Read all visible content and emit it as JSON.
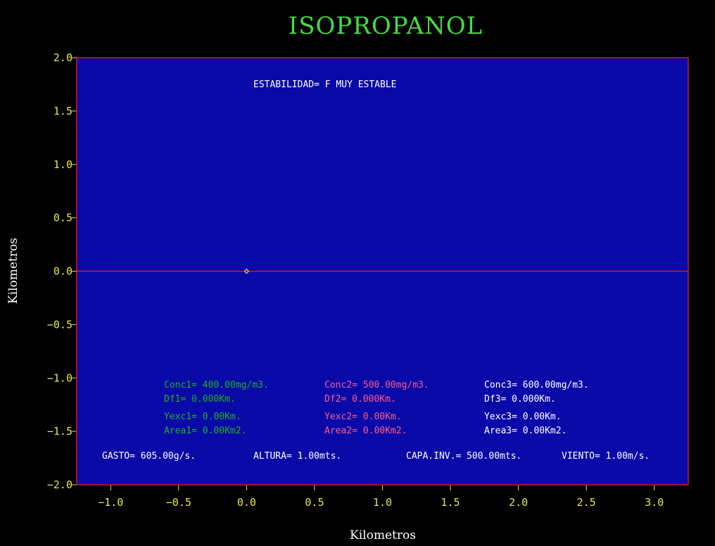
{
  "chart_data": {
    "type": "scatter",
    "title": "ISOPROPANOL",
    "xlabel": "Kilometros",
    "ylabel": "Kilometros",
    "xlim": [
      -1.25,
      3.25
    ],
    "ylim": [
      -2.0,
      2.0
    ],
    "x_ticks": [
      -1.0,
      -0.5,
      0.0,
      0.5,
      1.0,
      1.5,
      2.0,
      2.5,
      3.0
    ],
    "x_tick_labels": [
      "−1.0",
      "−0.5",
      "0.0",
      "0.5",
      "1.0",
      "1.5",
      "2.0",
      "2.5",
      "3.0"
    ],
    "y_ticks": [
      2.0,
      1.5,
      1.0,
      0.5,
      0.0,
      -0.5,
      -1.0,
      -1.5,
      -2.0
    ],
    "y_tick_labels": [
      "2.0",
      "1.5",
      "1.0",
      "0.5",
      "0.0",
      "−0.5",
      "−1.0",
      "−1.5",
      "−2.0"
    ],
    "grid": false,
    "baseline_y": 0.0,
    "points": [
      {
        "x": 0.0,
        "y": 0.0
      }
    ],
    "stability": "ESTABILIDAD= F  MUY ESTABLE",
    "series_info": [
      {
        "conc": "Conc1= 400.00mg/m3.",
        "df": "Df1= 0.000Km.",
        "yexc": "Yexc1= 0.00Km.",
        "area": "Area1= 0.00Km2.",
        "color": "#20b020"
      },
      {
        "conc": "Conc2= 500.00mg/m3.",
        "df": "Df2= 0.000Km.",
        "yexc": "Yexc2= 0.00Km.",
        "area": "Area2= 0.00Km2.",
        "color": "#ff5a8a"
      },
      {
        "conc": "Conc3= 600.00mg/m3.",
        "df": "Df3= 0.000Km.",
        "yexc": "Yexc3= 0.00Km.",
        "area": "Area3= 0.00Km2.",
        "color": "#ffffff"
      }
    ],
    "params": {
      "gasto": "GASTO= 605.00g/s.",
      "altura": "ALTURA= 1.00mts.",
      "capa": "CAPA.INV.= 500.00mts.",
      "viento": "VIENTO= 1.00m/s."
    },
    "colors": {
      "background": "#000000",
      "plot_bg": "#0a0aa8",
      "frame": "#c81e1e",
      "baseline": "#c81e1e",
      "ticks": "#e8e84a",
      "title": "#44dd44",
      "point": "#ffe070"
    }
  }
}
